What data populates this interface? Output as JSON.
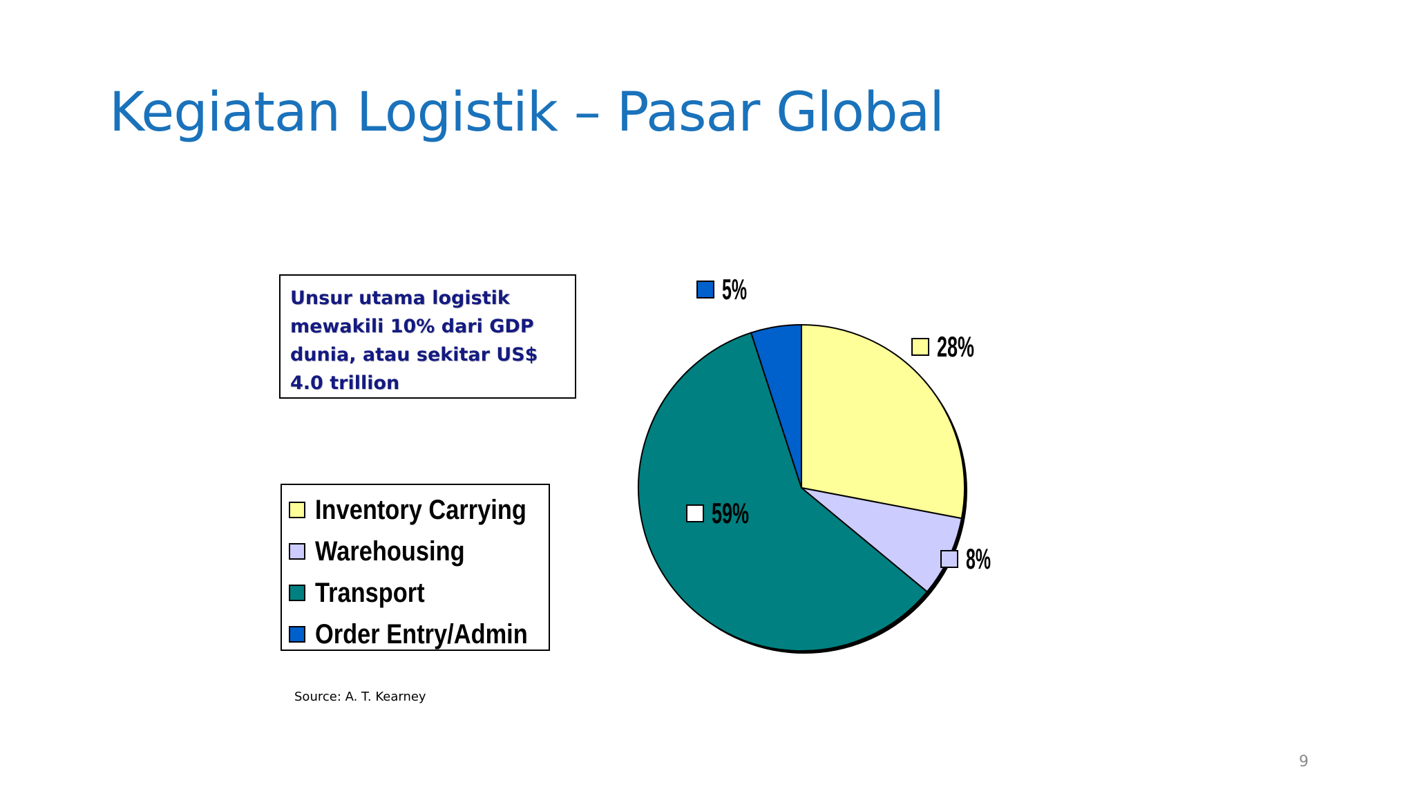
{
  "slide": {
    "title": "Kegiatan Logistik – Pasar Global",
    "note": "Unsur utama logistik mewakili 10% dari GDP dunia, atau sekitar US$ 4.0 trillion",
    "source": "Source: A. T. Kearney",
    "page_number": "9"
  },
  "chart_data": {
    "type": "pie",
    "title": "",
    "legend_position": "left",
    "slices": [
      {
        "name": "Inventory Carrying",
        "value": 28,
        "label": "28%",
        "color": "#ffff99"
      },
      {
        "name": "Warehousing",
        "value": 8,
        "label": "8%",
        "color": "#ccccff"
      },
      {
        "name": "Transport",
        "value": 59,
        "label": "59%",
        "color": "#008080"
      },
      {
        "name": "Order Entry/Admin",
        "value": 5,
        "label": "5%",
        "color": "#0060cc"
      }
    ]
  }
}
